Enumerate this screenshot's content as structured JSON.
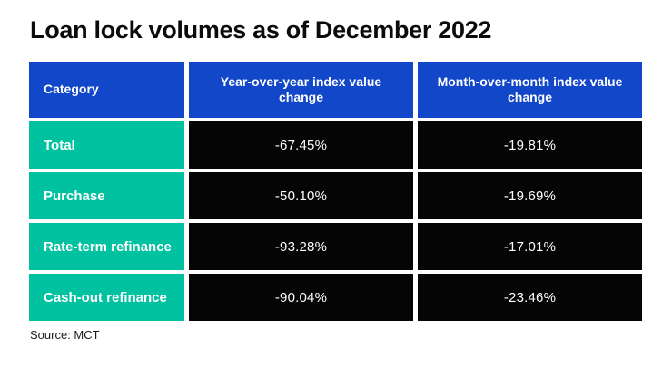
{
  "title": "Loan lock volumes as of December 2022",
  "source": "Source: MCT",
  "colors": {
    "header_bg": "#1147c8",
    "category_bg": "#00c1a0",
    "value_bg": "#050505",
    "text_on_cells": "#ffffff",
    "title_text": "#0b0b0b"
  },
  "chart_data": {
    "type": "table",
    "title": "Loan lock volumes as of December 2022",
    "columns": [
      "Category",
      "Year-over-year index value change",
      "Month-over-month index value change"
    ],
    "rows": [
      {
        "category": "Total",
        "yoy": "-67.45%",
        "mom": "-19.81%"
      },
      {
        "category": "Purchase",
        "yoy": "-50.10%",
        "mom": "-19.69%"
      },
      {
        "category": "Rate-term refinance",
        "yoy": "-93.28%",
        "mom": "-17.01%"
      },
      {
        "category": "Cash-out refinance",
        "yoy": "-90.04%",
        "mom": "-23.46%"
      }
    ],
    "source": "Source: MCT",
    "layout": {
      "legend": "none",
      "grid": "off",
      "value_format": "percent"
    }
  }
}
